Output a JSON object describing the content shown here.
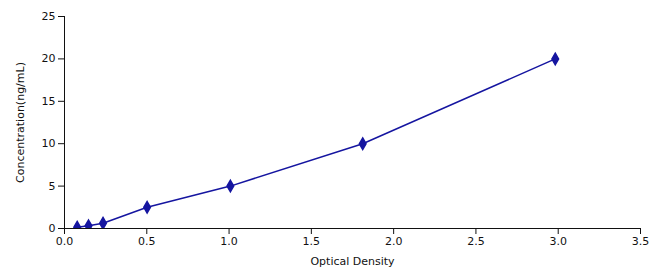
{
  "chart_data": {
    "type": "line",
    "xlabel": "Optical Density",
    "ylabel": "Concentration(ng/mL)",
    "x": [
      0.077,
      0.146,
      0.234,
      0.502,
      1.008,
      1.812,
      2.982
    ],
    "values": [
      0.156,
      0.312,
      0.625,
      2.5,
      5.0,
      10.0,
      20.0
    ],
    "color": "#1515a0",
    "marker": "diamond",
    "xlim": [
      0,
      3.5
    ],
    "ylim": [
      0,
      25
    ],
    "xticks": [
      {
        "value": 0,
        "label": "0.0"
      },
      0.5,
      {
        "value": 1.0,
        "label": "1.0"
      },
      1.5,
      {
        "value": 2.0,
        "label": "2.0"
      },
      2.5,
      {
        "value": 3.0,
        "label": "3.0"
      },
      3.5
    ],
    "yticks": [
      0,
      5,
      10,
      15,
      20,
      25
    ],
    "grid": false
  }
}
